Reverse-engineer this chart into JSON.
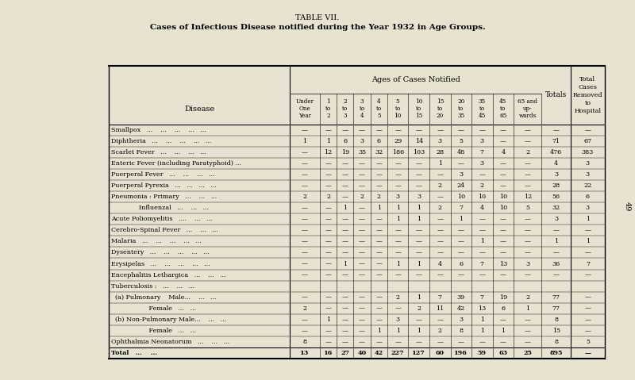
{
  "title1": "TABLE VII.",
  "title2": "Cases of Infectious Disease notified during the Year 1932 in Age Groups.",
  "bg_color": "#e8e2d0",
  "page_number": "49",
  "rows": [
    {
      "disease": "Smallpox   ...    ...    ...    ...   ...",
      "values": [
        "—",
        "—",
        "—",
        "—",
        "—",
        "—",
        "—",
        "—",
        "—",
        "—",
        "—",
        "—",
        "—",
        "—"
      ],
      "is_total": false
    },
    {
      "disease": "Diphtheria   ...    ...    ...    ...   ...",
      "values": [
        "1",
        "1",
        "6",
        "3",
        "6",
        "29",
        "14",
        "3",
        "5",
        "3",
        "—",
        "—",
        "71",
        "67"
      ],
      "is_total": false
    },
    {
      "disease": "Scarlet Fever   ...    ...    ...   ...",
      "values": [
        "—",
        "12",
        "19",
        "35",
        "32",
        "186",
        "103",
        "28",
        "48",
        "7",
        "4",
        "2",
        "476",
        "383"
      ],
      "is_total": false
    },
    {
      "disease": "Enteric Fever (including Paratyphoid) ...",
      "values": [
        "—",
        "—",
        "—",
        "—",
        "—",
        "—",
        "—",
        "1",
        "—",
        "3",
        "—",
        "—",
        "4",
        "3"
      ],
      "is_total": false
    },
    {
      "disease": "Puerperal Fever   ...    ...    ...   ...",
      "values": [
        "—",
        "—",
        "—",
        "—",
        "—",
        "—",
        "—",
        "—",
        "3",
        "—",
        "—",
        "—",
        "3",
        "3"
      ],
      "is_total": false
    },
    {
      "disease": "Puerperal Pyrexia   ...   ...   ...   ...",
      "values": [
        "—",
        "—",
        "—",
        "—",
        "—",
        "—",
        "—",
        "2",
        "24",
        "2",
        "—",
        "—",
        "28",
        "22"
      ],
      "is_total": false
    },
    {
      "disease": "Pneumonia : Primary   ...    ...   ...",
      "values": [
        "2",
        "2",
        "—",
        "2",
        "2",
        "3",
        "3",
        "—",
        "10",
        "10",
        "10",
        "12",
        "56",
        "6"
      ],
      "is_total": false
    },
    {
      "disease": "              Influenzal   ...    ...   ...",
      "values": [
        "—",
        "—",
        "1",
        "—",
        "1",
        "1",
        "1",
        "2",
        "7",
        "4",
        "10",
        "5",
        "32",
        "3"
      ],
      "is_total": false
    },
    {
      "disease": "Acute Poliomyelitis   ....    ...   ...",
      "values": [
        "—",
        "—",
        "—",
        "—",
        "—",
        "1",
        "1",
        "—",
        "1",
        "—",
        "—",
        "—",
        "3",
        "1"
      ],
      "is_total": false
    },
    {
      "disease": "Cerebro-Spinal Fever   ...    ...   ...",
      "values": [
        "—",
        "—",
        "—",
        "—",
        "—",
        "—",
        "—",
        "—",
        "—",
        "—",
        "—",
        "—",
        "—",
        "—"
      ],
      "is_total": false
    },
    {
      "disease": "Malaria   ...    ...    ...    ...   ...",
      "values": [
        "—",
        "—",
        "—",
        "—",
        "—",
        "—",
        "—",
        "—",
        "—",
        "1",
        "—",
        "—",
        "1",
        "1"
      ],
      "is_total": false
    },
    {
      "disease": "Dysentery   ...    ...    ...    ...   ...",
      "values": [
        "—",
        "—",
        "—",
        "—",
        "—",
        "—",
        "—",
        "—",
        "—",
        "—",
        "—",
        "—",
        "—",
        "—"
      ],
      "is_total": false
    },
    {
      "disease": "Erysipelas   ...    ...    ...    ...   ...",
      "values": [
        "—",
        "—",
        "1",
        "—",
        "—",
        "1",
        "1",
        "4",
        "6",
        "7",
        "13",
        "3",
        "36",
        "7"
      ],
      "is_total": false
    },
    {
      "disease": "Encephalitis Lethargica   ...    ...   ...",
      "values": [
        "—",
        "—",
        "—",
        "—",
        "—",
        "—",
        "—",
        "—",
        "—",
        "—",
        "—",
        "—",
        "—",
        "—"
      ],
      "is_total": false
    },
    {
      "disease": "Tuberculosis :   ...    ...   ...",
      "values": [
        "",
        "",
        "",
        "",
        "",
        "",
        "",
        "",
        "",
        "",
        "",
        "",
        "",
        ""
      ],
      "is_total": false
    },
    {
      "disease": "  (a) Pulmonary    Male...    ...   ...",
      "values": [
        "—",
        "—",
        "—",
        "—",
        "—",
        "2",
        "1",
        "7",
        "39",
        "7",
        "19",
        "2",
        "77",
        "—"
      ],
      "is_total": false
    },
    {
      "disease": "                   Female   ...   ...",
      "values": [
        "2",
        "—",
        "—",
        "—",
        "—",
        "—",
        "2",
        "11",
        "42",
        "13",
        "6",
        "1",
        "77",
        "—"
      ],
      "is_total": false
    },
    {
      "disease": "  (b) Non-Pulmonary Male...    ...   ...",
      "values": [
        "—",
        "1",
        "—",
        "—",
        "—",
        "3",
        "—",
        "—",
        "3",
        "1",
        "—",
        "—",
        "8",
        "—"
      ],
      "is_total": false
    },
    {
      "disease": "                   Female   ...   ...",
      "values": [
        "—",
        "—",
        "—",
        "—",
        "1",
        "1",
        "1",
        "2",
        "8",
        "1",
        "1",
        "—",
        "15",
        "—"
      ],
      "is_total": false
    },
    {
      "disease": "Ophthalmia Neonatorum   ...    ...   ...",
      "values": [
        "8",
        "—",
        "—",
        "—",
        "—",
        "—",
        "—",
        "—",
        "—",
        "—",
        "—",
        "—",
        "8",
        "5"
      ],
      "is_total": false
    },
    {
      "disease": "Total   ...    ...",
      "values": [
        "13",
        "16",
        "27",
        "40",
        "42",
        "227",
        "127",
        "60",
        "196",
        "59",
        "63",
        "25",
        "895",
        "—"
      ],
      "is_total": true
    }
  ]
}
